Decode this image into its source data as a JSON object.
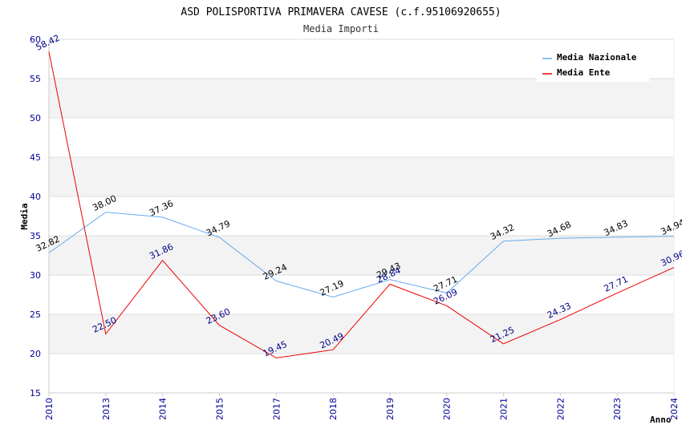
{
  "chart_data": {
    "type": "line",
    "title": "ASD POLISPORTIVA PRIMAVERA CAVESE (c.f.95106920655)",
    "subtitle": "Media Importi",
    "xlabel": "Anno",
    "ylabel": "Media",
    "categories": [
      "2010",
      "2013",
      "2014",
      "2015",
      "2017",
      "2018",
      "2019",
      "2020",
      "2021",
      "2022",
      "2023",
      "2024"
    ],
    "ylim": [
      15,
      60
    ],
    "yticks": [
      15,
      20,
      25,
      30,
      35,
      40,
      45,
      50,
      55,
      60
    ],
    "grid": true,
    "legend_position": "top-right",
    "series": [
      {
        "name": "Media Nazionale",
        "color": "#66aaee",
        "label_color": "#000000",
        "values": [
          32.82,
          38.0,
          37.36,
          34.79,
          29.24,
          27.19,
          29.43,
          27.71,
          34.32,
          34.68,
          34.83,
          34.94
        ],
        "labels": [
          "32.82",
          "38.00",
          "37.36",
          "34.79",
          "29.24",
          "27.19",
          "29.43",
          "27.71",
          "34.32",
          "34.68",
          "34.83",
          "34.94"
        ]
      },
      {
        "name": "Media Ente",
        "color": "#ee0000",
        "label_color": "#000088",
        "values": [
          58.42,
          22.5,
          31.86,
          23.6,
          19.45,
          20.49,
          28.84,
          26.09,
          21.25,
          24.33,
          27.71,
          30.96
        ],
        "labels": [
          "58.42",
          "22.50",
          "31.86",
          "23.60",
          "19.45",
          "20.49",
          "28.84",
          "26.09",
          "21.25",
          "24.33",
          "27.71",
          "30.96"
        ]
      }
    ]
  }
}
